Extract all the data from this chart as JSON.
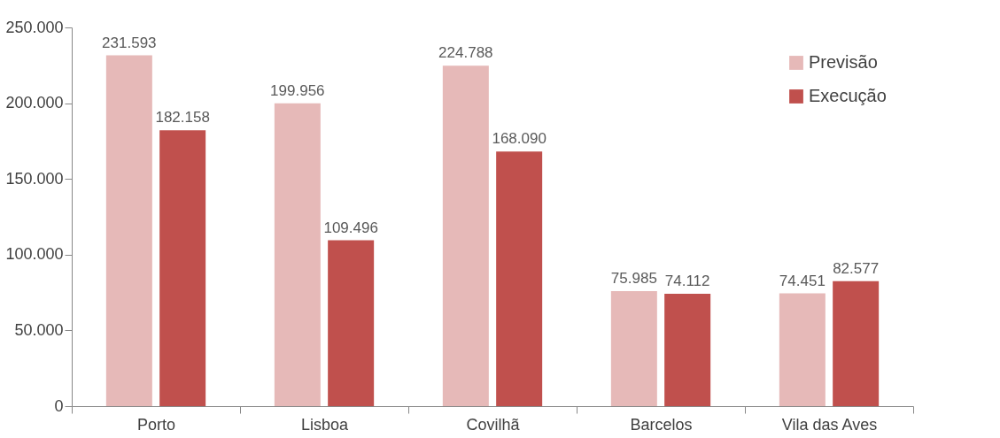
{
  "chart_data": {
    "type": "bar",
    "categories": [
      "Porto",
      "Lisboa",
      "Covilhã",
      "Barcelos",
      "Vila das Aves"
    ],
    "series": [
      {
        "name": "Previsão",
        "color": "#e6b9b8",
        "values": [
          231593,
          199956,
          224788,
          75985,
          74451
        ],
        "value_labels": [
          "231.593",
          "199.956",
          "224.788",
          "75.985",
          "74.451"
        ]
      },
      {
        "name": "Execução",
        "color": "#c0504d",
        "values": [
          182158,
          109496,
          168090,
          74112,
          82577
        ],
        "value_labels": [
          "182.158",
          "109.496",
          "168.090",
          "74.112",
          "82.577"
        ]
      }
    ],
    "ylim": [
      0,
      250000
    ],
    "yticks": [
      0,
      {
        "value": 50000,
        "label": "50.000"
      },
      {
        "value": 100000,
        "label": "100.000"
      },
      {
        "value": 150000,
        "label": "150.000"
      },
      {
        "value": 200000,
        "label": "200.000"
      },
      {
        "value": 250000,
        "label": "250.000"
      }
    ],
    "grid": false,
    "legend": "top right"
  }
}
